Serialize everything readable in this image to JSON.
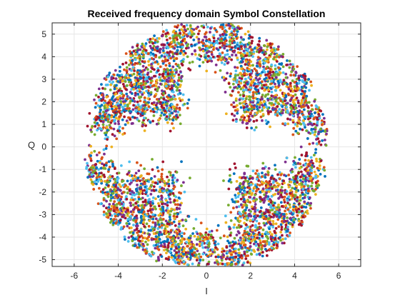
{
  "chart_data": {
    "type": "scatter",
    "title": "Received frequency domain Symbol Constellation",
    "xlabel": "I",
    "ylabel": "Q",
    "xlim": [
      -7,
      7
    ],
    "ylim": [
      -5.3,
      5.5
    ],
    "xticks": [
      -6,
      -4,
      -2,
      0,
      2,
      4,
      6
    ],
    "yticks": [
      -5,
      -4,
      -3,
      -2,
      -1,
      0,
      1,
      2,
      3,
      4,
      5
    ],
    "xtick_labels": [
      "-6",
      "-4",
      "-2",
      "0",
      "2",
      "4",
      "6"
    ],
    "ytick_labels": [
      "-5",
      "-4",
      "-3",
      "-2",
      "-1",
      "0",
      "1",
      "2",
      "3",
      "4",
      "5"
    ],
    "grid": true,
    "legend": "none",
    "colors": [
      "#0072bd",
      "#d95319",
      "#edb120",
      "#7e2f8e",
      "#77ac30",
      "#4dbeee",
      "#a2142f"
    ],
    "description_of_distribution": "noisy ring of received symbols clustered around 64-QAM-like constellation points, annulus radius approximately 1.2 to 5.3",
    "series": [
      {
        "points": [
          [
            -1.2,
            5.0
          ],
          [
            -1.0,
            5.3
          ],
          [
            1.1,
            -5.0
          ],
          [
            1.0,
            -5.2
          ],
          [
            -0.9,
            -4.8
          ],
          [
            -1.0,
            -5.1
          ],
          [
            5.0,
            1.0
          ],
          [
            5.2,
            0.8
          ],
          [
            -5.2,
            -1.0
          ],
          [
            -5.0,
            -0.9
          ],
          [
            4.6,
            -1.2
          ],
          [
            -4.6,
            1.2
          ],
          [
            -5.0,
            1.0
          ],
          [
            5.1,
            -1.0
          ],
          [
            0.0,
            4.4
          ],
          [
            0.1,
            -4.4
          ],
          [
            -4.3,
            0.0
          ],
          [
            4.3,
            0.0
          ]
        ]
      }
    ]
  }
}
